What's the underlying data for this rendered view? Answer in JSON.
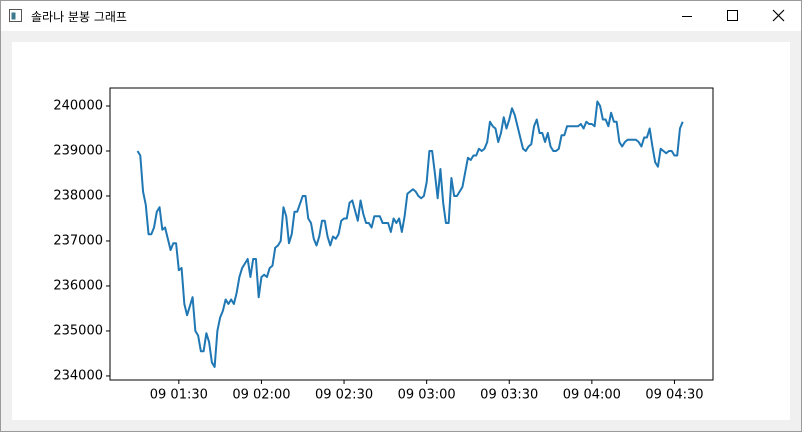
{
  "window": {
    "title": "솔라나 분봉 그래프"
  },
  "chart_data": {
    "type": "line",
    "color": "#1f77b4",
    "x": [
      "09 01:15",
      "09 01:16",
      "09 01:17",
      "09 01:18",
      "09 01:19",
      "09 01:20",
      "09 01:21",
      "09 01:22",
      "09 01:23",
      "09 01:24",
      "09 01:25",
      "09 01:26",
      "09 01:27",
      "09 01:28",
      "09 01:29",
      "09 01:30",
      "09 01:31",
      "09 01:32",
      "09 01:33",
      "09 01:35",
      "09 01:36",
      "09 01:37",
      "09 01:38",
      "09 01:39",
      "09 01:40",
      "09 01:41",
      "09 01:42",
      "09 01:43",
      "09 01:44",
      "09 01:45",
      "09 01:46",
      "09 01:47",
      "09 01:48",
      "09 01:49",
      "09 01:50",
      "09 01:51",
      "09 01:52",
      "09 01:53",
      "09 01:55",
      "09 01:56",
      "09 01:57",
      "09 01:58",
      "09 01:59",
      "09 02:00",
      "09 02:01",
      "09 02:02",
      "09 02:03",
      "09 02:04",
      "09 02:05",
      "09 02:06",
      "09 02:07",
      "09 02:08",
      "09 02:09",
      "09 02:10",
      "09 02:11",
      "09 02:12",
      "09 02:13",
      "09 02:15",
      "09 02:16",
      "09 02:17",
      "09 02:18",
      "09 02:19",
      "09 02:20",
      "09 02:21",
      "09 02:22",
      "09 02:23",
      "09 02:24",
      "09 02:25",
      "09 02:26",
      "09 02:27",
      "09 02:28",
      "09 02:29",
      "09 02:30",
      "09 02:31",
      "09 02:32",
      "09 02:33",
      "09 02:35",
      "09 02:36",
      "09 02:37",
      "09 02:38",
      "09 02:39",
      "09 02:40",
      "09 02:41",
      "09 02:42",
      "09 02:43",
      "09 02:44",
      "09 02:45",
      "09 02:46",
      "09 02:47",
      "09 02:48",
      "09 02:49",
      "09 02:50",
      "09 02:51",
      "09 02:52",
      "09 02:53",
      "09 02:55",
      "09 02:56",
      "09 02:57",
      "09 02:58",
      "09 02:59",
      "09 03:00",
      "09 03:01",
      "09 03:02",
      "09 03:03",
      "09 03:04",
      "09 03:05",
      "09 03:06",
      "09 03:07",
      "09 03:08",
      "09 03:09",
      "09 03:10",
      "09 03:11",
      "09 03:12",
      "09 03:13",
      "09 03:15",
      "09 03:16",
      "09 03:17",
      "09 03:18",
      "09 03:19",
      "09 03:20",
      "09 03:21",
      "09 03:22",
      "09 03:23",
      "09 03:24",
      "09 03:25",
      "09 03:26",
      "09 03:27",
      "09 03:28",
      "09 03:29",
      "09 03:30",
      "09 03:31",
      "09 03:32",
      "09 03:33",
      "09 03:35",
      "09 03:36",
      "09 03:37",
      "09 03:38",
      "09 03:39",
      "09 03:40",
      "09 03:41",
      "09 03:42",
      "09 03:43",
      "09 03:44",
      "09 03:45",
      "09 03:46",
      "09 03:47",
      "09 03:48",
      "09 03:49",
      "09 03:50",
      "09 03:51",
      "09 03:52",
      "09 03:53",
      "09 03:55",
      "09 03:56",
      "09 03:57",
      "09 03:58",
      "09 03:59",
      "09 04:00",
      "09 04:01",
      "09 04:02",
      "09 04:03",
      "09 04:04",
      "09 04:05",
      "09 04:06",
      "09 04:07",
      "09 04:08",
      "09 04:09",
      "09 04:10",
      "09 04:11",
      "09 04:12",
      "09 04:13",
      "09 04:15",
      "09 04:16",
      "09 04:17",
      "09 04:18",
      "09 04:19",
      "09 04:20",
      "09 04:21",
      "09 04:22",
      "09 04:23",
      "09 04:24",
      "09 04:25",
      "09 04:26",
      "09 04:27",
      "09 04:28",
      "09 04:29",
      "09 04:30",
      "09 04:31",
      "09 04:32",
      "09 04:33"
    ],
    "values": [
      239000,
      238900,
      238100,
      237800,
      237150,
      237150,
      237300,
      237650,
      237750,
      237250,
      237300,
      237050,
      236800,
      236950,
      236950,
      236350,
      236400,
      235600,
      235350,
      235750,
      235000,
      234900,
      234550,
      234550,
      234950,
      234750,
      234300,
      234200,
      235000,
      235300,
      235450,
      235700,
      235600,
      235700,
      235600,
      235850,
      236200,
      236400,
      236600,
      236200,
      236600,
      236600,
      235750,
      236200,
      236250,
      236200,
      236400,
      236450,
      236850,
      236900,
      237000,
      237750,
      237550,
      236950,
      237150,
      237650,
      237650,
      238000,
      238000,
      237500,
      237400,
      237050,
      236900,
      237100,
      237450,
      237450,
      237100,
      236900,
      237100,
      237050,
      237150,
      237450,
      237500,
      237500,
      237850,
      237900,
      237450,
      237900,
      237600,
      237400,
      237400,
      237300,
      237550,
      237550,
      237550,
      237400,
      237400,
      237400,
      237200,
      237500,
      237400,
      237500,
      237200,
      237550,
      238050,
      238150,
      238100,
      238000,
      237950,
      238000,
      238300,
      239000,
      239000,
      238500,
      237950,
      238600,
      237850,
      237400,
      237400,
      238400,
      238000,
      238000,
      238100,
      238200,
      238850,
      238800,
      238900,
      238900,
      239050,
      239000,
      239050,
      239200,
      239650,
      239550,
      239500,
      239200,
      239400,
      239750,
      239500,
      239700,
      239950,
      239800,
      239550,
      239050,
      239000,
      239100,
      239150,
      239550,
      239700,
      239400,
      239400,
      239200,
      239400,
      239100,
      239000,
      239000,
      239050,
      239350,
      239350,
      239550,
      239550,
      239550,
      239550,
      239600,
      239500,
      239650,
      239600,
      239600,
      239550,
      240100,
      240000,
      239700,
      239700,
      239550,
      239850,
      239650,
      239650,
      239200,
      239100,
      239200,
      239250,
      239250,
      239250,
      239200,
      239100,
      239300,
      239300,
      239500,
      239100,
      238750,
      238650,
      239050,
      239000,
      238950,
      239000,
      239000,
      238900,
      238900,
      239500,
      239650
    ],
    "xlim": [
      "09 01:05",
      "09 04:44"
    ],
    "xticks": [
      "09 01:30",
      "09 02:00",
      "09 02:30",
      "09 03:00",
      "09 03:30",
      "09 04:00",
      "09 04:30"
    ],
    "ylim": [
      233910,
      240400
    ],
    "yticks": [
      234000,
      235000,
      236000,
      237000,
      238000,
      239000,
      240000
    ],
    "grid": false
  }
}
